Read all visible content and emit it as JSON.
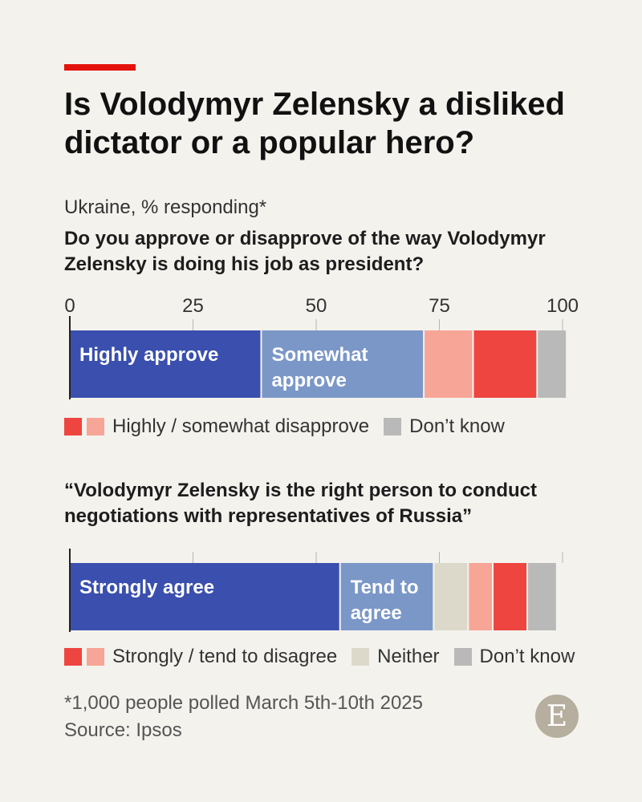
{
  "header": {
    "title": "Is Volodymyr Zelensky a disliked dictator or a popular hero?",
    "subtitle": "Ukraine, % responding*"
  },
  "colors": {
    "accent": "#e3120b",
    "strong_approve": "#3a4fae",
    "moderate_approve": "#7b97c8",
    "moderate_disapprove": "#f7a597",
    "strong_disapprove": "#ee4540",
    "neither": "#dcd9ca",
    "dont_know": "#b9b9b9"
  },
  "chart_data": [
    {
      "type": "bar",
      "orientation": "horizontal-stacked",
      "question": "Do you approve or disapprove of the way Volodymyr Zelensky is doing his job as president?",
      "xlim": [
        0,
        100
      ],
      "ticks": [
        "0",
        "25",
        "50",
        "75",
        "100"
      ],
      "segments": [
        {
          "name": "Highly approve",
          "value": 39,
          "label": "Highly approve",
          "color": "#3a4fae"
        },
        {
          "name": "Somewhat approve",
          "value": 33,
          "label": "Somewhat approve",
          "color": "#7b97c8"
        },
        {
          "name": "Somewhat disapprove",
          "value": 10,
          "label": "",
          "color": "#f7a597"
        },
        {
          "name": "Highly disapprove",
          "value": 13,
          "label": "",
          "color": "#ee4540"
        },
        {
          "name": "Don’t know",
          "value": 6,
          "label": "",
          "color": "#b9b9b9"
        }
      ],
      "legend": [
        {
          "text": "Highly / somewhat disapprove",
          "swatches": [
            "#ee4540",
            "#f7a597"
          ]
        },
        {
          "text": "Don’t know",
          "swatches": [
            "#b9b9b9"
          ]
        }
      ]
    },
    {
      "type": "bar",
      "orientation": "horizontal-stacked",
      "question": "“Volodymyr Zelensky is the right person to conduct negotiations with representatives of Russia”",
      "xlim": [
        0,
        100
      ],
      "ticks": [],
      "segments": [
        {
          "name": "Strongly agree",
          "value": 55,
          "label": "Strongly agree",
          "color": "#3a4fae"
        },
        {
          "name": "Tend to agree",
          "value": 19,
          "label": "Tend to agree",
          "color": "#7b97c8"
        },
        {
          "name": "Neither",
          "value": 7,
          "label": "",
          "color": "#dcd9ca"
        },
        {
          "name": "Tend to disagree",
          "value": 5,
          "label": "",
          "color": "#f7a597"
        },
        {
          "name": "Strongly disagree",
          "value": 7,
          "label": "",
          "color": "#ee4540"
        },
        {
          "name": "Don’t know",
          "value": 6,
          "label": "",
          "color": "#b9b9b9"
        }
      ],
      "legend": [
        {
          "text": "Strongly / tend to disagree",
          "swatches": [
            "#ee4540",
            "#f7a597"
          ]
        },
        {
          "text": "Neither",
          "swatches": [
            "#dcd9ca"
          ]
        },
        {
          "text": "Don’t know",
          "swatches": [
            "#b9b9b9"
          ]
        }
      ]
    }
  ],
  "footer": {
    "footnote": "*1,000 people polled March 5th-10th 2025",
    "source": "Source: Ipsos",
    "logo_letter": "E"
  }
}
